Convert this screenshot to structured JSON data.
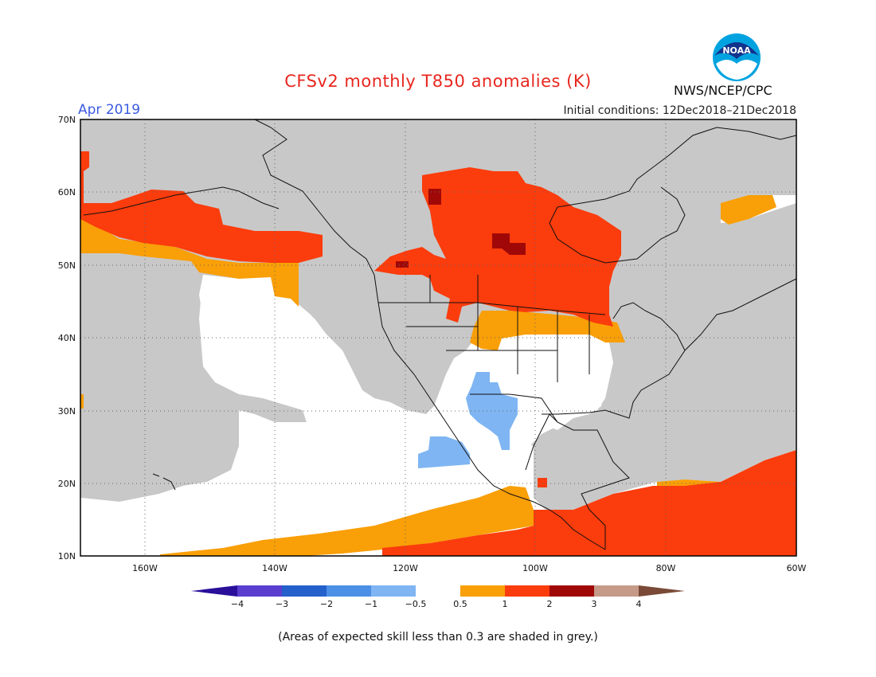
{
  "header": {
    "title": "CFSv2 monthly T850 anomalies (K)",
    "month": "Apr 2019",
    "initial_conditions": "Initial conditions: 12Dec2018–21Dec2018",
    "agency": "NWS/NCEP/CPC",
    "logo_text": "NOAA"
  },
  "map": {
    "lat_labels": [
      "70N",
      "60N",
      "50N",
      "40N",
      "30N",
      "20N",
      "10N"
    ],
    "lon_labels": [
      "160W",
      "140W",
      "120W",
      "100W",
      "80W",
      "60W"
    ]
  },
  "legend": {
    "tick_labels": [
      "−4",
      "−3",
      "−2",
      "−1",
      "−0.5",
      "0.5",
      "1",
      "2",
      "3",
      "4"
    ],
    "colors": [
      "#2a0f9a",
      "#5a3ed0",
      "#2360cc",
      "#4b8fe6",
      "#7fb5f2",
      "#ffffff",
      "#f99f07",
      "#fb3c0c",
      "#a00808",
      "#c59a88",
      "#7a4a36"
    ]
  },
  "colors": {
    "grey": "#c8c8c8",
    "white": "#ffffff",
    "light_blue": "#7fb5f2",
    "orange": "#f99f07",
    "red": "#fb3c0c",
    "dark_red": "#a00808"
  },
  "footnote": "(Areas of expected skill less than 0.3 are shaded in grey.)"
}
